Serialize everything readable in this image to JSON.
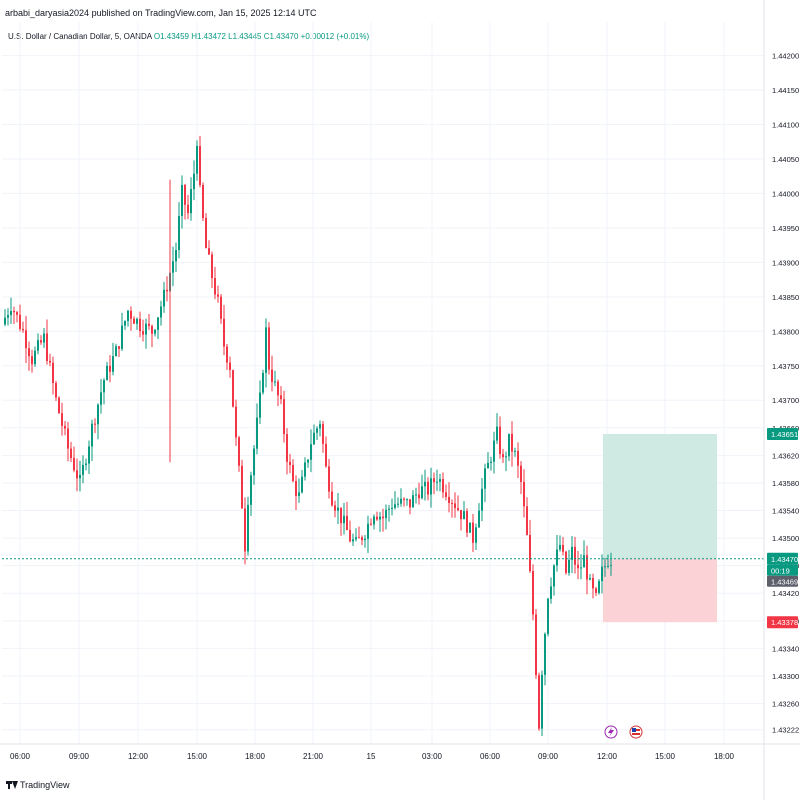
{
  "header": {
    "published": "arbabi_daryasia2024 published on TradingView.com, Jan 15, 2025 12:14 UTC"
  },
  "legend": {
    "symbol": "U.S. Dollar / Canadian Dollar, 5, OANDA",
    "ohlc": "O1.43459  H1.43472  L1.43445  C1.43470  +0.00012 (+0.01%)"
  },
  "footer": {
    "brand": "TradingView"
  },
  "colors": {
    "up": "#089981",
    "down": "#f23645",
    "grid": "#f0f3fa",
    "profit_zone": "#cfeae3",
    "loss_zone": "#fbd3d6",
    "axis_text": "#131722"
  },
  "chart_data": {
    "type": "candlestick",
    "timeframe": "5",
    "ylim": [
      1.4321,
      1.4424
    ],
    "y_ticks": [
      "1.44200",
      "1.44150",
      "1.44100",
      "1.44050",
      "1.44000",
      "1.43950",
      "1.43900",
      "1.43850",
      "1.43800",
      "1.43750",
      "1.43700",
      "1.43660",
      "1.43620",
      "1.43580",
      "1.43540",
      "1.43500",
      "1.43460",
      "1.43420",
      "1.43380",
      "1.43340",
      "1.43300",
      "1.43260",
      "1.43222"
    ],
    "x_ticks": [
      "06:00",
      "09:00",
      "12:00",
      "15:00",
      "18:00",
      "21:00",
      "15",
      "03:00",
      "06:00",
      "09:00",
      "12:00",
      "15:00",
      "18:00"
    ],
    "price_path": [
      [
        0,
        1.4381
      ],
      [
        3,
        1.4384
      ],
      [
        7,
        1.438
      ],
      [
        10,
        1.4376
      ],
      [
        14,
        1.4379
      ],
      [
        18,
        1.437
      ],
      [
        22,
        1.4363
      ],
      [
        26,
        1.4358
      ],
      [
        30,
        1.4366
      ],
      [
        34,
        1.4373
      ],
      [
        38,
        1.4377
      ],
      [
        42,
        1.4383
      ],
      [
        46,
        1.4381
      ],
      [
        50,
        1.438
      ],
      [
        54,
        1.4385
      ],
      [
        58,
        1.4392
      ],
      [
        60,
        1.44
      ],
      [
        62,
        1.4397
      ],
      [
        64,
        1.4403
      ],
      [
        65,
        1.4408
      ],
      [
        66,
        1.44
      ],
      [
        68,
        1.4392
      ],
      [
        70,
        1.4388
      ],
      [
        72,
        1.4384
      ],
      [
        74,
        1.4378
      ],
      [
        76,
        1.4375
      ],
      [
        78,
        1.4364
      ],
      [
        80,
        1.4355
      ],
      [
        81,
        1.4349
      ],
      [
        82,
        1.4356
      ],
      [
        84,
        1.4363
      ],
      [
        86,
        1.437
      ],
      [
        88,
        1.438
      ],
      [
        89,
        1.4375
      ],
      [
        91,
        1.4372
      ],
      [
        93,
        1.4369
      ],
      [
        95,
        1.4362
      ],
      [
        97,
        1.4358
      ],
      [
        99,
        1.4356
      ],
      [
        101,
        1.436
      ],
      [
        103,
        1.4364
      ],
      [
        106,
        1.4367
      ],
      [
        108,
        1.436
      ],
      [
        110,
        1.4356
      ],
      [
        113,
        1.4353
      ],
      [
        116,
        1.435
      ],
      [
        118,
        1.4349
      ],
      [
        121,
        1.4351
      ],
      [
        124,
        1.4354
      ],
      [
        127,
        1.4353
      ],
      [
        130,
        1.4355
      ],
      [
        133,
        1.4355
      ],
      [
        136,
        1.4355
      ],
      [
        139,
        1.4357
      ],
      [
        142,
        1.4357
      ],
      [
        145,
        1.4359
      ],
      [
        148,
        1.4357
      ],
      [
        151,
        1.4355
      ],
      [
        154,
        1.4353
      ],
      [
        157,
        1.435
      ],
      [
        159,
        1.4355
      ],
      [
        161,
        1.4359
      ],
      [
        163,
        1.4362
      ],
      [
        165,
        1.4365
      ],
      [
        167,
        1.4361
      ],
      [
        169,
        1.4364
      ],
      [
        171,
        1.4362
      ],
      [
        173,
        1.4358
      ],
      [
        175,
        1.435
      ],
      [
        177,
        1.4339
      ],
      [
        179,
        1.4323
      ],
      [
        180,
        1.4331
      ],
      [
        182,
        1.4342
      ],
      [
        184,
        1.4346
      ],
      [
        186,
        1.4349
      ],
      [
        188,
        1.4345
      ],
      [
        190,
        1.4348
      ],
      [
        192,
        1.4345
      ],
      [
        194,
        1.4347
      ],
      [
        196,
        1.4343
      ],
      [
        198,
        1.4341
      ],
      [
        200,
        1.4345
      ],
      [
        202,
        1.4347
      ]
    ],
    "current_price": "1.43470",
    "countdown": "00:19",
    "bid_price": "1.43469",
    "position": {
      "target": "1.43651",
      "entry": "1.43470",
      "stop": "1.43378"
    },
    "notable_prices": {
      "high": 1.441,
      "low": 1.433,
      "spike_low": 1.4361
    }
  }
}
